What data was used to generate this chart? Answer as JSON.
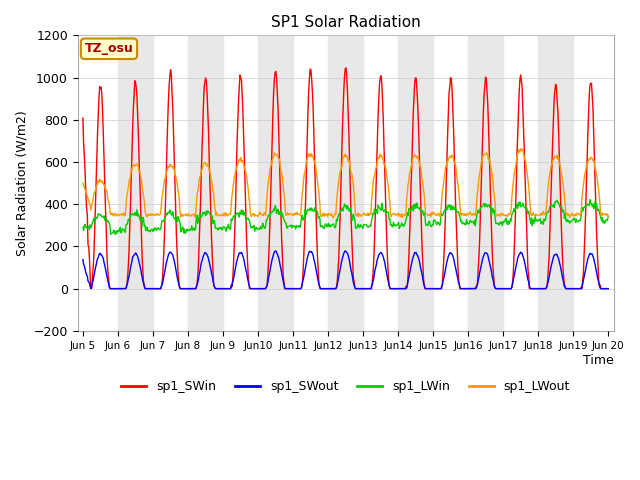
{
  "title": "SP1 Solar Radiation",
  "ylabel": "Solar Radiation (W/m2)",
  "xlabel": "Time",
  "ylim": [
    -200,
    1200
  ],
  "yticks": [
    -200,
    0,
    200,
    400,
    600,
    800,
    1000,
    1200
  ],
  "tz_label": "TZ_osu",
  "legend": [
    "sp1_SWin",
    "sp1_SWout",
    "sp1_LWin",
    "sp1_LWout"
  ],
  "line_colors": [
    "#ff0000",
    "#0000ff",
    "#00cc00",
    "#ff9900"
  ],
  "band_color": "#e8e8e8",
  "sw_peaks": [
    970,
    980,
    1020,
    1005,
    1010,
    1035,
    1045,
    1045,
    1005,
    1000,
    1000,
    1000,
    1005,
    970,
    980
  ],
  "lw_out_peaks": [
    510,
    590,
    585,
    595,
    610,
    640,
    640,
    630,
    630,
    630,
    630,
    640,
    660,
    630,
    620
  ],
  "font_family": "DejaVu Sans"
}
